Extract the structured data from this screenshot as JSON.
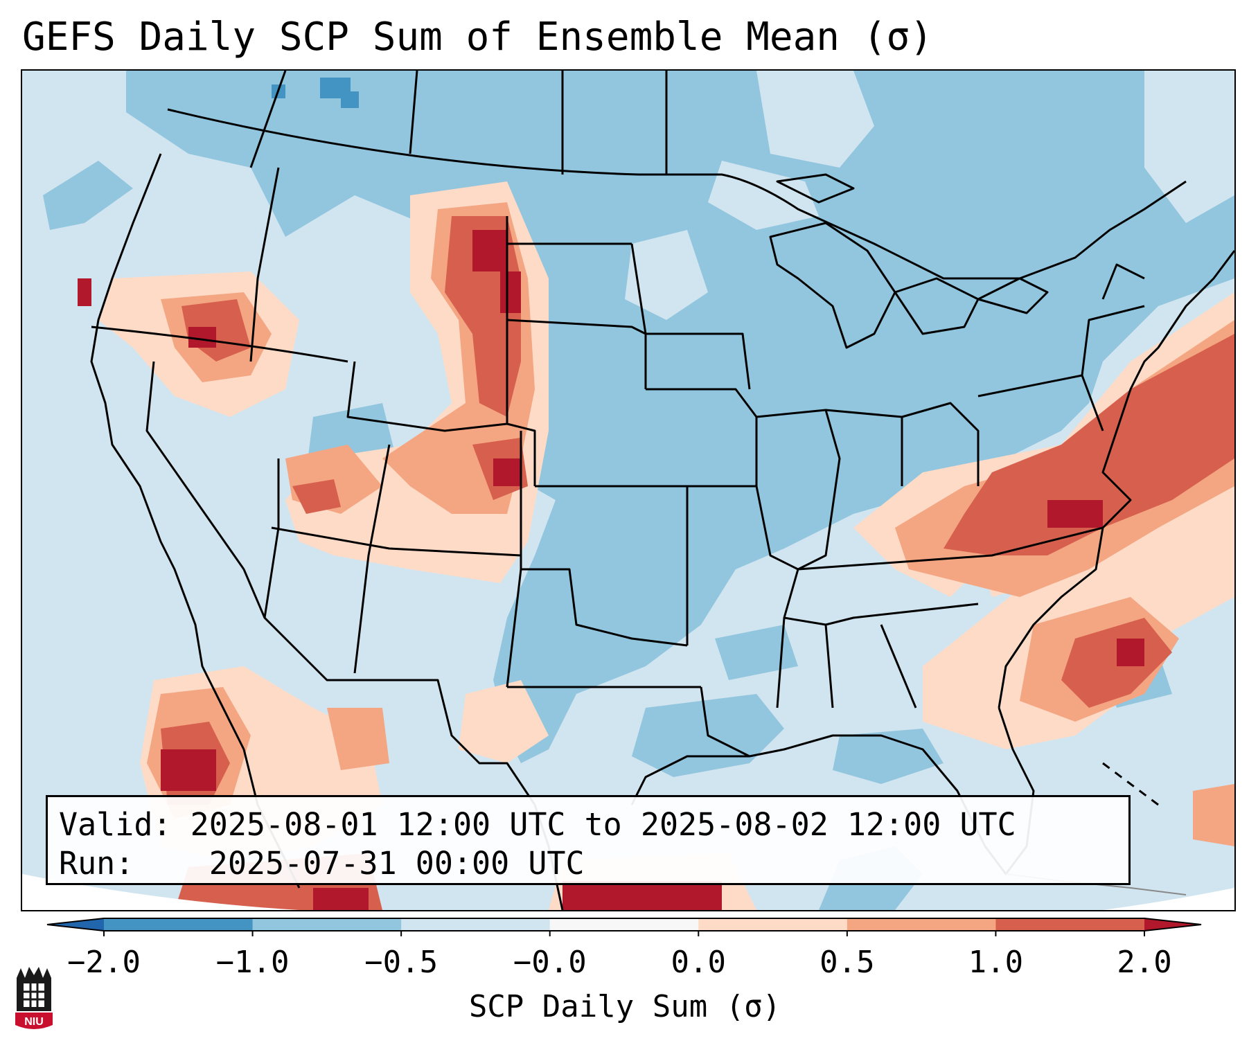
{
  "title": "GEFS Daily SCP Sum of Ensemble Mean (σ)",
  "info": {
    "valid_label": "Valid:",
    "valid_value": "2025-08-01 12:00 UTC to 2025-08-02 12:00 UTC",
    "run_label": "Run:",
    "run_value": "2025-07-31 00:00 UTC"
  },
  "colorbar": {
    "label": "SCP Daily Sum (σ)",
    "ticks": [
      "−2.0",
      "−1.0",
      "−0.5",
      "−0.0",
      "0.0",
      "0.5",
      "1.0",
      "2.0"
    ],
    "colors": [
      "#4393c3",
      "#92c5de",
      "#d1e5f0",
      "#f7f7f7",
      "#fddbc7",
      "#f4a582",
      "#d6604d"
    ],
    "under_color": "#2166ac",
    "over_color": "#b2182b"
  },
  "logo": {
    "text": "NIU",
    "icon": "niu-tower-icon",
    "colors": {
      "red": "#c8102e",
      "black": "#1a1a1a"
    }
  },
  "map": {
    "background_color": "#d1e5f0",
    "moderate_negative_color": "#92c5de",
    "strong_negative_color": "#4393c3",
    "region": "Continental United States, southern Canada, northern Mexico"
  }
}
